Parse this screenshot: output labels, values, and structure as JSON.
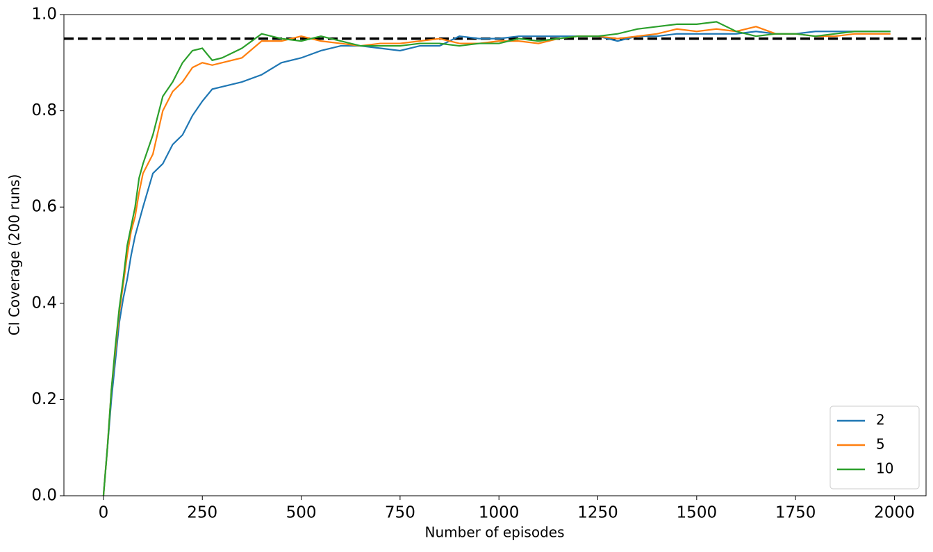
{
  "chart_data": {
    "type": "line",
    "xlabel": "Number of episodes",
    "ylabel": "CI Coverage (200 runs)",
    "x": [
      0,
      10,
      20,
      30,
      40,
      50,
      60,
      70,
      80,
      90,
      100,
      125,
      150,
      175,
      200,
      225,
      250,
      275,
      300,
      350,
      400,
      450,
      500,
      550,
      600,
      650,
      700,
      750,
      800,
      850,
      900,
      950,
      1000,
      1050,
      1100,
      1150,
      1200,
      1250,
      1300,
      1350,
      1400,
      1450,
      1500,
      1550,
      1600,
      1650,
      1700,
      1750,
      1800,
      1850,
      1900,
      1950,
      1990
    ],
    "series": [
      {
        "name": "2",
        "color": "#1f77b4",
        "values": [
          0,
          0.1,
          0.2,
          0.28,
          0.36,
          0.41,
          0.45,
          0.5,
          0.54,
          0.57,
          0.6,
          0.67,
          0.69,
          0.73,
          0.75,
          0.79,
          0.82,
          0.845,
          0.85,
          0.86,
          0.875,
          0.9,
          0.91,
          0.925,
          0.935,
          0.935,
          0.93,
          0.925,
          0.935,
          0.935,
          0.955,
          0.95,
          0.95,
          0.955,
          0.955,
          0.955,
          0.955,
          0.955,
          0.945,
          0.955,
          0.955,
          0.96,
          0.96,
          0.96,
          0.96,
          0.965,
          0.96,
          0.96,
          0.965,
          0.965,
          0.965,
          0.965,
          0.965
        ]
      },
      {
        "name": "5",
        "color": "#ff7f0e",
        "values": [
          0,
          0.1,
          0.22,
          0.3,
          0.38,
          0.44,
          0.5,
          0.55,
          0.58,
          0.63,
          0.67,
          0.71,
          0.8,
          0.84,
          0.86,
          0.89,
          0.9,
          0.895,
          0.9,
          0.91,
          0.945,
          0.945,
          0.955,
          0.945,
          0.94,
          0.935,
          0.94,
          0.94,
          0.945,
          0.95,
          0.94,
          0.94,
          0.945,
          0.945,
          0.94,
          0.95,
          0.955,
          0.955,
          0.95,
          0.955,
          0.96,
          0.97,
          0.965,
          0.97,
          0.965,
          0.975,
          0.96,
          0.96,
          0.955,
          0.955,
          0.96,
          0.96,
          0.96
        ]
      },
      {
        "name": "10",
        "color": "#2ca02c",
        "values": [
          0,
          0.1,
          0.22,
          0.31,
          0.39,
          0.45,
          0.52,
          0.56,
          0.6,
          0.66,
          0.69,
          0.75,
          0.83,
          0.86,
          0.9,
          0.925,
          0.93,
          0.905,
          0.91,
          0.93,
          0.96,
          0.95,
          0.945,
          0.955,
          0.945,
          0.935,
          0.935,
          0.935,
          0.94,
          0.94,
          0.935,
          0.94,
          0.94,
          0.95,
          0.945,
          0.95,
          0.955,
          0.955,
          0.96,
          0.97,
          0.975,
          0.98,
          0.98,
          0.985,
          0.965,
          0.955,
          0.96,
          0.96,
          0.955,
          0.96,
          0.965,
          0.965,
          0.965
        ]
      }
    ],
    "hline": {
      "value": 0.95,
      "color": "#000000",
      "style": "dashed"
    },
    "xlim": [
      -100,
      2080
    ],
    "ylim": [
      0,
      1
    ],
    "xticks": [
      0,
      250,
      500,
      750,
      1000,
      1250,
      1500,
      1750,
      2000
    ],
    "yticks": [
      {
        "value": 0,
        "label": "0.0"
      },
      0.2,
      0.4,
      0.6,
      0.8,
      {
        "value": 1,
        "label": "1.0"
      }
    ],
    "grid": false,
    "legend": "lower right"
  }
}
